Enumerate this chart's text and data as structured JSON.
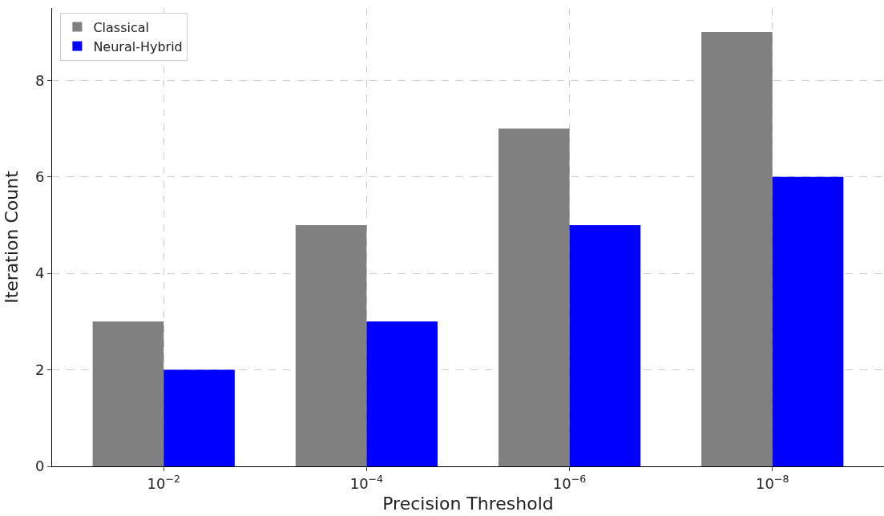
{
  "chart_data": {
    "type": "bar",
    "xlabel": "Precision Threshold",
    "ylabel": "Iteration Count",
    "categories": [
      "10$^{−2}$",
      "10$^{−4}$",
      "10$^{−6}$",
      "10$^{−8}$"
    ],
    "series": [
      {
        "name": "Classical",
        "color": "#808080",
        "values": [
          3,
          5,
          7,
          9
        ]
      },
      {
        "name": "Neural-Hybrid",
        "color": "#0000ff",
        "values": [
          2,
          3,
          5,
          6
        ]
      }
    ],
    "ylim": [
      0,
      9.5
    ],
    "yticks": [
      0,
      2,
      4,
      6,
      8
    ],
    "grid": true,
    "legend": "top left"
  }
}
